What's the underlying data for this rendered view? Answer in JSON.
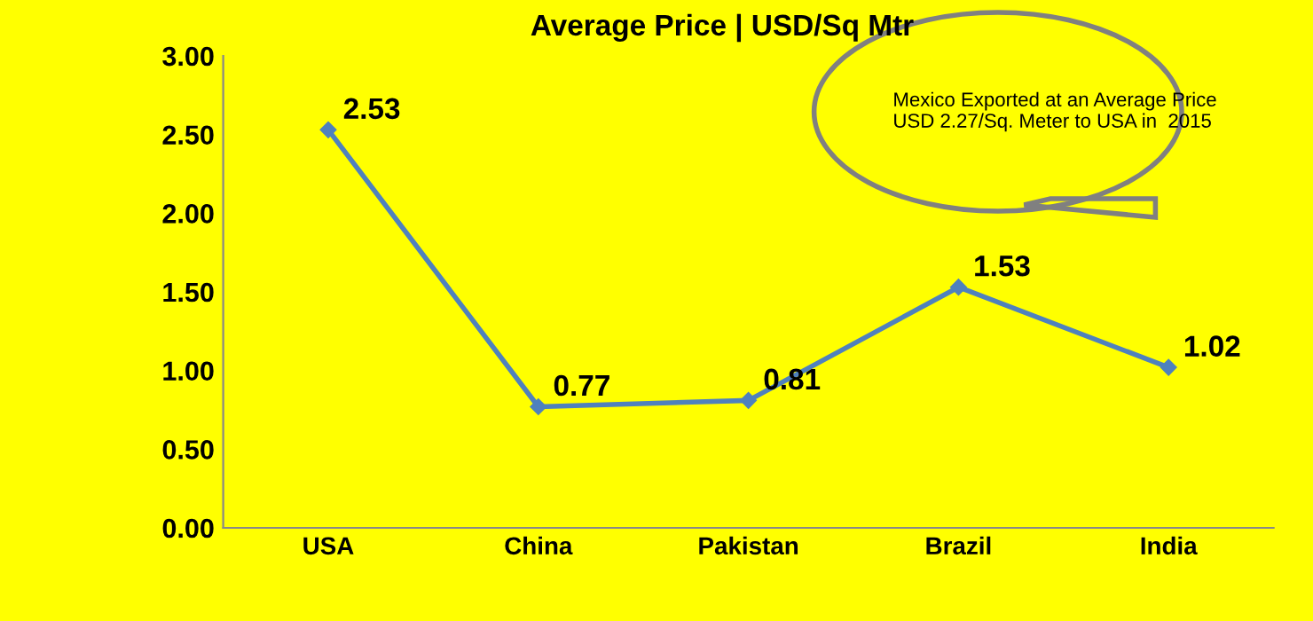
{
  "chart_data": {
    "type": "line",
    "title": "Average Price | USD/Sq Mtr",
    "categories": [
      "USA",
      "China",
      "Pakistan",
      "Brazil",
      "India"
    ],
    "series": [
      {
        "color": "#4f81bd",
        "values": [
          2.53,
          0.77,
          0.81,
          1.53,
          1.02
        ]
      }
    ],
    "ylim": [
      0,
      3
    ],
    "yticks": [
      {
        "value": 0,
        "label": "0.00"
      },
      {
        "value": 0.5,
        "label": "0.50"
      },
      {
        "value": 1,
        "label": "1.00"
      },
      {
        "value": 1.5,
        "label": "1.50"
      },
      {
        "value": 2,
        "label": "2.00"
      },
      {
        "value": 2.5,
        "label": "2.50"
      },
      {
        "value": 3,
        "label": "3.00"
      }
    ],
    "grid": false,
    "marker": "diamond",
    "line_style": "solid",
    "data_labels": true,
    "annotations": [
      "Mexico Exported at an Average Price USD 2.27/Sq. Meter to USA in  2015"
    ]
  }
}
